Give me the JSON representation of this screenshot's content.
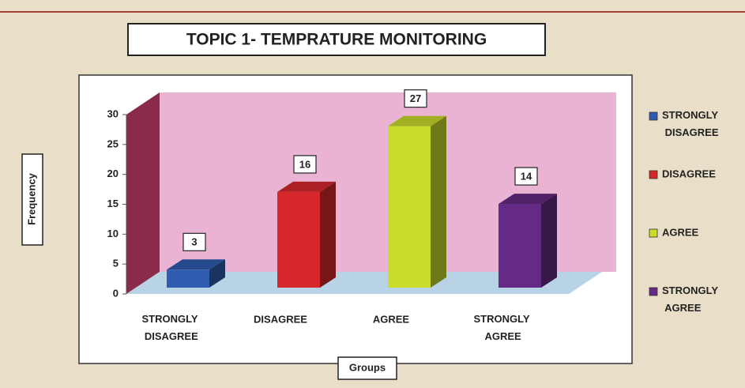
{
  "chart_data": {
    "type": "bar3d",
    "title": "TOPIC 1- TEMPRATURE MONITORING",
    "x_label": "Groups",
    "y_label": "Frequency",
    "categories": [
      "STRONGLY DISAGREE",
      "DISAGREE",
      "AGREE",
      "STRONGLY AGREE"
    ],
    "values": [
      3,
      16,
      27,
      14
    ],
    "colors": [
      "#2f5cae",
      "#d6282b",
      "#c9dc2c",
      "#652a85"
    ],
    "ylim": [
      0,
      30
    ],
    "yticks": [
      0,
      5,
      10,
      15,
      20,
      25,
      30
    ],
    "legend": "right"
  }
}
